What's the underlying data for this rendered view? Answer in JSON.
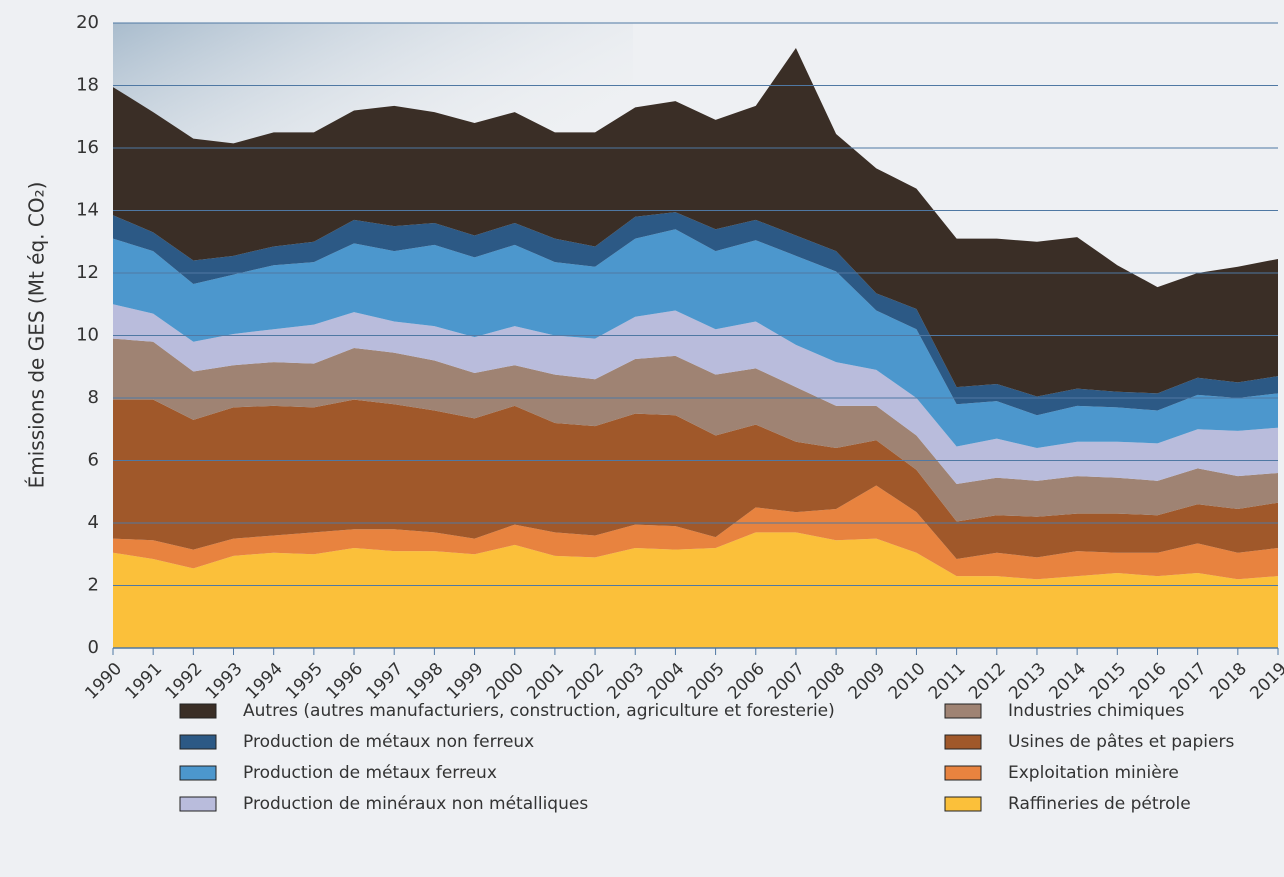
{
  "chart_data": {
    "type": "stacked_area",
    "y_label": "Émissions de GES (Mt éq. CO₂)",
    "x": [
      1990,
      1991,
      1992,
      1993,
      1994,
      1995,
      1996,
      1997,
      1998,
      1999,
      2000,
      2001,
      2002,
      2003,
      2004,
      2005,
      2006,
      2007,
      2008,
      2009,
      2010,
      2011,
      2012,
      2013,
      2014,
      2015,
      2016,
      2017,
      2018,
      2019
    ],
    "xlim": [
      1990,
      2019
    ],
    "xticks": [
      1990,
      1991,
      1992,
      1993,
      1994,
      1995,
      1996,
      1997,
      1998,
      1999,
      2000,
      2001,
      2002,
      2003,
      2004,
      2005,
      2006,
      2007,
      2008,
      2009,
      2010,
      2011,
      2012,
      2013,
      2014,
      2015,
      2016,
      2017,
      2018,
      2019
    ],
    "ylim": [
      0,
      20
    ],
    "yticks": [
      0,
      2,
      4,
      6,
      8,
      10,
      12,
      14,
      16,
      18,
      20
    ],
    "grid": true,
    "series": [
      {
        "name": "Raffineries de pétrole",
        "color": "#fbc03a",
        "values": [
          3.05,
          2.85,
          2.55,
          2.95,
          3.05,
          3.0,
          3.2,
          3.1,
          3.1,
          3.0,
          3.3,
          2.95,
          2.9,
          3.2,
          3.15,
          3.2,
          3.7,
          3.7,
          3.45,
          3.5,
          3.05,
          2.3,
          2.3,
          2.2,
          2.3,
          2.4,
          2.3,
          2.4,
          2.2,
          2.3
        ]
      },
      {
        "name": "Exploitation minière",
        "color": "#e8833f",
        "values": [
          0.45,
          0.6,
          0.6,
          0.55,
          0.55,
          0.7,
          0.6,
          0.7,
          0.6,
          0.5,
          0.65,
          0.75,
          0.7,
          0.75,
          0.75,
          0.35,
          0.8,
          0.65,
          1.0,
          1.7,
          1.3,
          0.55,
          0.75,
          0.7,
          0.8,
          0.65,
          0.75,
          0.95,
          0.85,
          0.9
        ]
      },
      {
        "name": "Usines de pâtes et papiers",
        "color": "#a0582a",
        "values": [
          4.45,
          4.5,
          4.15,
          4.2,
          4.15,
          4.0,
          4.15,
          4.0,
          3.9,
          3.85,
          3.8,
          3.5,
          3.5,
          3.55,
          3.55,
          3.25,
          2.65,
          2.25,
          1.95,
          1.45,
          1.35,
          1.2,
          1.2,
          1.3,
          1.2,
          1.25,
          1.2,
          1.25,
          1.4,
          1.45
        ]
      },
      {
        "name": "Industries chimiques",
        "color": "#9f8373",
        "values": [
          1.95,
          1.85,
          1.55,
          1.35,
          1.4,
          1.4,
          1.65,
          1.65,
          1.6,
          1.45,
          1.3,
          1.55,
          1.5,
          1.75,
          1.9,
          1.95,
          1.8,
          1.75,
          1.35,
          1.1,
          1.1,
          1.2,
          1.2,
          1.15,
          1.2,
          1.15,
          1.1,
          1.15,
          1.05,
          0.95
        ]
      },
      {
        "name": "Production de minéraux non métalliques",
        "color": "#b9bcdc",
        "values": [
          1.1,
          0.9,
          0.95,
          1.0,
          1.05,
          1.25,
          1.15,
          1.0,
          1.1,
          1.15,
          1.25,
          1.25,
          1.3,
          1.35,
          1.45,
          1.45,
          1.5,
          1.35,
          1.4,
          1.15,
          1.2,
          1.2,
          1.25,
          1.05,
          1.1,
          1.15,
          1.2,
          1.25,
          1.45,
          1.45
        ]
      },
      {
        "name": "Production de métaux ferreux",
        "color": "#4c97cd",
        "values": [
          2.1,
          2.0,
          1.85,
          1.9,
          2.05,
          2.0,
          2.2,
          2.25,
          2.6,
          2.55,
          2.6,
          2.35,
          2.3,
          2.5,
          2.6,
          2.5,
          2.6,
          2.85,
          2.9,
          1.9,
          2.2,
          1.35,
          1.2,
          1.05,
          1.15,
          1.1,
          1.05,
          1.1,
          1.05,
          1.1
        ]
      },
      {
        "name": "Production de métaux non ferreux",
        "color": "#2c5985",
        "values": [
          0.75,
          0.6,
          0.75,
          0.6,
          0.6,
          0.65,
          0.75,
          0.8,
          0.7,
          0.7,
          0.7,
          0.75,
          0.65,
          0.7,
          0.55,
          0.7,
          0.65,
          0.65,
          0.65,
          0.55,
          0.65,
          0.55,
          0.55,
          0.6,
          0.55,
          0.5,
          0.55,
          0.55,
          0.5,
          0.55
        ]
      },
      {
        "name": "Autres (autres manufacturiers, construction, agriculture et foresterie)",
        "color": "#3a2e26",
        "values": [
          4.1,
          3.85,
          3.9,
          3.6,
          3.65,
          3.5,
          3.5,
          3.85,
          3.55,
          3.6,
          3.55,
          3.4,
          3.65,
          3.5,
          3.55,
          3.5,
          3.65,
          6.0,
          3.75,
          4.0,
          3.85,
          4.75,
          4.65,
          4.95,
          4.85,
          4.05,
          3.4,
          3.35,
          3.7,
          3.75
        ]
      }
    ]
  }
}
